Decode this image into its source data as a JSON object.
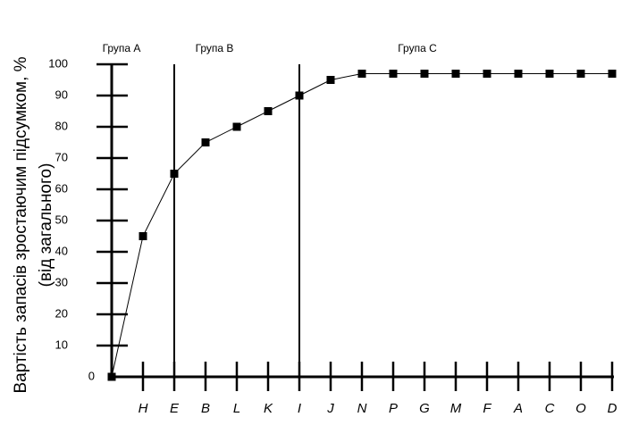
{
  "chart_data": {
    "type": "line",
    "y_label_lines": [
      "Вартість запасів зростаючим підсумком, %",
      "(від загального)"
    ],
    "groups": [
      "Група A",
      "Група B",
      "Група C"
    ],
    "categories": [
      null,
      "H",
      "E",
      "B",
      "L",
      "K",
      "I",
      "J",
      "N",
      "P",
      "G",
      "M",
      "F",
      "A",
      "C",
      "O",
      "D"
    ],
    "series": [
      {
        "name": null,
        "color": "#000000",
        "values": [
          0,
          45,
          65,
          75,
          80,
          85,
          90,
          95,
          97,
          97,
          97,
          97,
          97,
          97,
          97,
          97,
          97
        ]
      }
    ],
    "ylim": [
      0,
      100
    ],
    "yticks": [
      0,
      10,
      20,
      30,
      40,
      50,
      60,
      70,
      80,
      90,
      100
    ]
  }
}
